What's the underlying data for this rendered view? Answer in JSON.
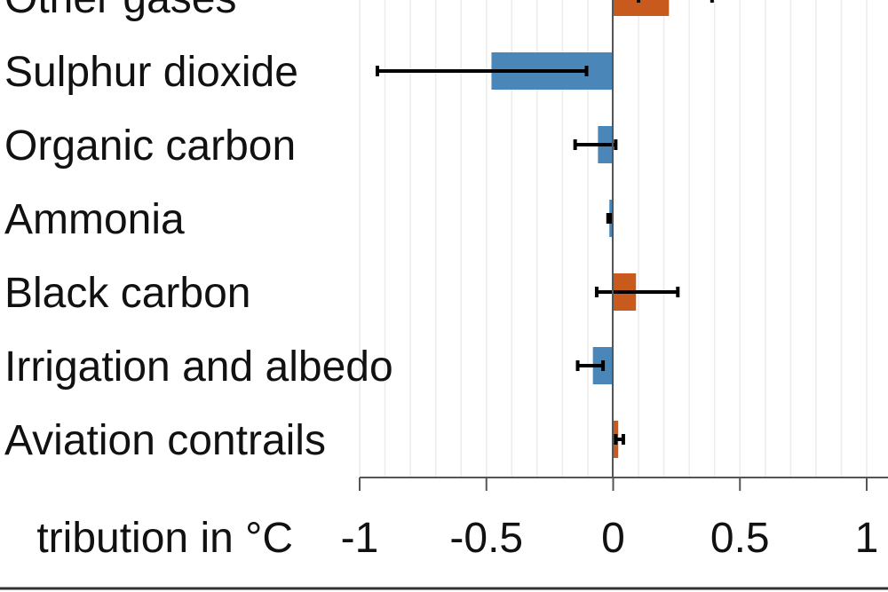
{
  "chart_data": {
    "type": "bar",
    "orientation": "horizontal",
    "categories": [
      "Other gases",
      "Sulphur dioxide",
      "Organic carbon",
      "Ammonia",
      "Black carbon",
      "Irrigation and albedo",
      "Aviation contrails"
    ],
    "values": [
      0.22,
      -0.48,
      -0.06,
      -0.015,
      0.09,
      -0.08,
      0.02
    ],
    "error_low": [
      0.1,
      -0.93,
      -0.15,
      -0.02,
      -0.065,
      -0.14,
      0.01
    ],
    "error_high": [
      0.39,
      -0.105,
      0.01,
      -0.01,
      0.255,
      -0.04,
      0.04
    ],
    "xlabel": "tribution in °C",
    "xlim": [
      -1,
      1
    ],
    "xticks": [
      "-1",
      "-0.5",
      "0",
      "0.5",
      "1"
    ],
    "xtick_values": [
      -1,
      -0.5,
      0,
      0.5,
      1
    ],
    "grid": "vertical minor every 0.1",
    "colors": {
      "positive": "#c85a1e",
      "negative": "#4a86b8",
      "error": "#000000"
    }
  }
}
